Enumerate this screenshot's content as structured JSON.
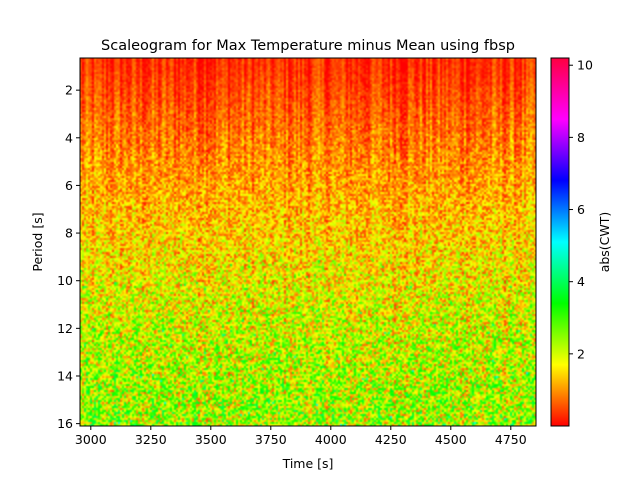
{
  "chart_data": {
    "type": "heatmap",
    "title": "Scaleogram for Max Temperature minus Mean using fbsp",
    "xlabel": "Time [s]",
    "ylabel": "Period [s]",
    "xlim": [
      2955,
      4855
    ],
    "ylim": [
      16.1,
      0.65
    ],
    "y_inverted": true,
    "xticks": [
      3000,
      3250,
      3500,
      3750,
      4000,
      4250,
      4500,
      4750
    ],
    "yticks": [
      2,
      4,
      6,
      8,
      10,
      12,
      14,
      16
    ],
    "colorbar": {
      "label": "abs(CWT)",
      "range": [
        0,
        10.2
      ],
      "ticks": [
        2,
        4,
        6,
        8,
        10
      ],
      "colormap": "gist_rainbow_r",
      "stops": [
        "#ff0000",
        "#ffff00",
        "#00ff00",
        "#00ffff",
        "#0000ff",
        "#ff00ff",
        "#ff0040"
      ]
    },
    "value_trend": {
      "description_periods": [
        1,
        4,
        8,
        12,
        16
      ],
      "typical_abs_cwt": [
        0.3,
        0.8,
        1.4,
        2.0,
        2.4
      ]
    },
    "grid": false,
    "legend": "none"
  }
}
